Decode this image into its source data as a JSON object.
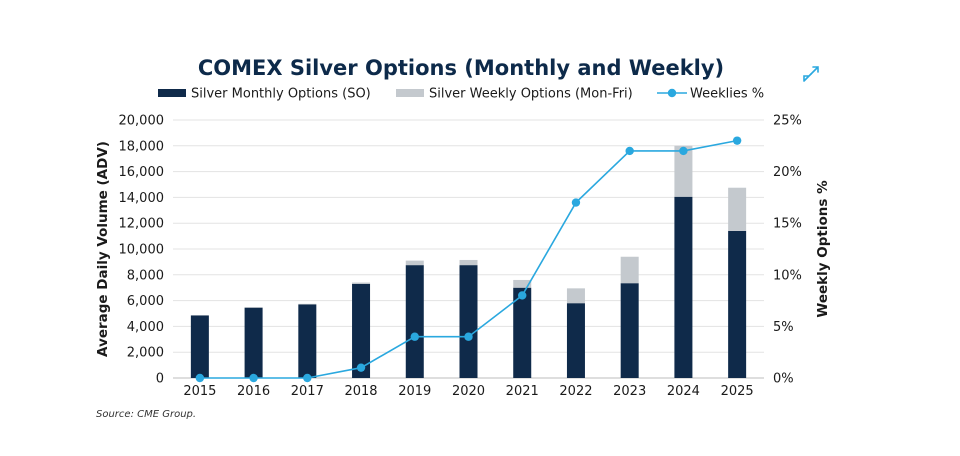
{
  "chart_data": {
    "type": "bar",
    "title": "COMEX Silver Options (Monthly and Weekly)",
    "categories": [
      "2015",
      "2016",
      "2017",
      "2018",
      "2019",
      "2020",
      "2021",
      "2022",
      "2023",
      "2024",
      "2025"
    ],
    "series": [
      {
        "name": "Silver Monthly Options (SO)",
        "type": "bar",
        "axis": "left",
        "color": "#0f2a4a",
        "values": [
          4850,
          5450,
          5700,
          7300,
          8750,
          8750,
          7000,
          5800,
          7350,
          14050,
          11400
        ]
      },
      {
        "name": "Silver Weekly Options (Mon-Fri)",
        "type": "bar",
        "axis": "left",
        "color": "#c4c9ce",
        "values": [
          0,
          50,
          50,
          100,
          350,
          400,
          600,
          1150,
          2050,
          3950,
          3350
        ]
      },
      {
        "name": "Weeklies %",
        "type": "line",
        "axis": "right",
        "color": "#2aa8df",
        "values": [
          0,
          0,
          0,
          1,
          4,
          4,
          8,
          17,
          22,
          22,
          23
        ]
      }
    ],
    "ylabel": "Average Daily Volume (ADV)",
    "ylim": [
      0,
      20000
    ],
    "yticks": [
      "0",
      "2,000",
      "4,000",
      "6,000",
      "8,000",
      "10,000",
      "12,000",
      "14,000",
      "16,000",
      "18,000",
      "20,000"
    ],
    "y2label": "Weekly Options %",
    "y2lim": [
      0,
      25
    ],
    "y2ticks": [
      "0%",
      "5%",
      "10%",
      "15%",
      "20%",
      "25%"
    ],
    "stacked": true,
    "grid": true,
    "legend": "top"
  },
  "source": "Source: CME Group.",
  "icons": {
    "expand": "expand-icon"
  }
}
